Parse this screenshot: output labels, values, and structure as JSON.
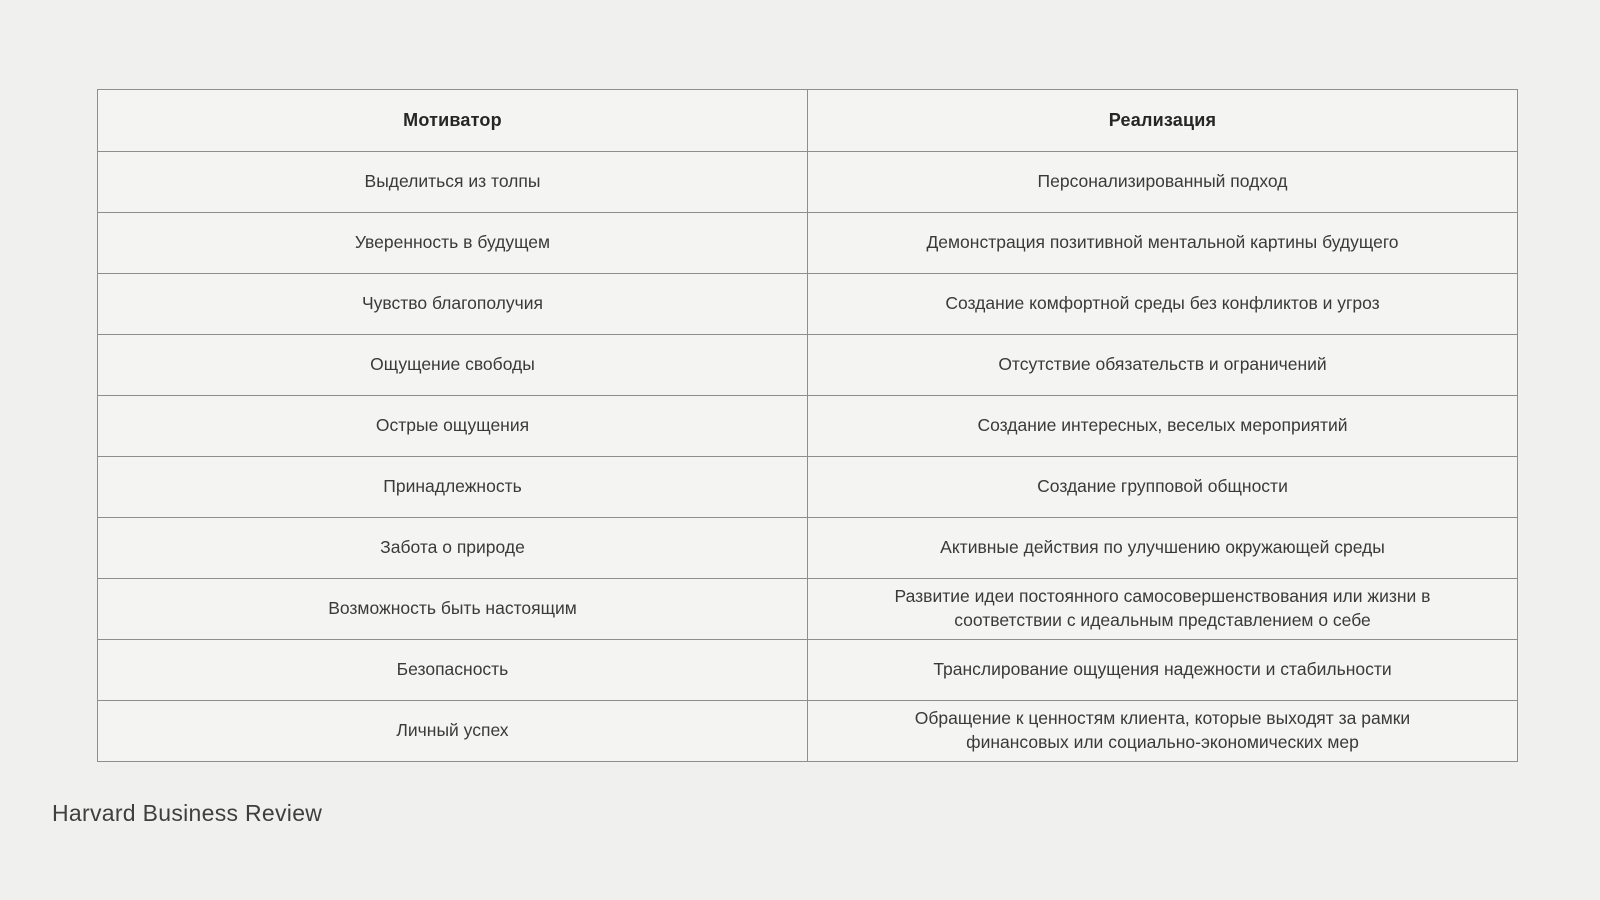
{
  "table": {
    "columns": [
      "Мотиватор",
      "Реализация"
    ],
    "rows": [
      {
        "motivator": "Выделиться из толпы",
        "realization": "Персонализированный подход"
      },
      {
        "motivator": "Уверенность в будущем",
        "realization": "Демонстрация позитивной ментальной картины будущего"
      },
      {
        "motivator": "Чувство благополучия",
        "realization": "Создание комфортной среды без конфликтов и угроз"
      },
      {
        "motivator": "Ощущение свободы",
        "realization": "Отсутствие обязательств и ограничений"
      },
      {
        "motivator": "Острые ощущения",
        "realization": "Создание интересных, веселых мероприятий"
      },
      {
        "motivator": "Принадлежность",
        "realization": "Создание групповой общности"
      },
      {
        "motivator": "Забота о природе",
        "realization": "Активные действия по улучшению окружающей среды"
      },
      {
        "motivator": "Возможность быть настоящим",
        "realization": "Развитие идеи постоянного самосовершенствования или жизни в соответствии с идеальным представлением о себе"
      },
      {
        "motivator": "Безопасность",
        "realization": "Транслирование ощущения надежности и стабильности"
      },
      {
        "motivator": "Личный успех",
        "realization": "Обращение к ценностям клиента, которые выходят за рамки финансовых или социально-экономических мер"
      }
    ]
  },
  "footer": {
    "source": "Harvard Business Review"
  },
  "colors": {
    "background": "#f0f0ee",
    "cell": "#f4f4f2",
    "border": "#8e8e8e",
    "text": "#3a3a3a",
    "heading": "#262626"
  }
}
